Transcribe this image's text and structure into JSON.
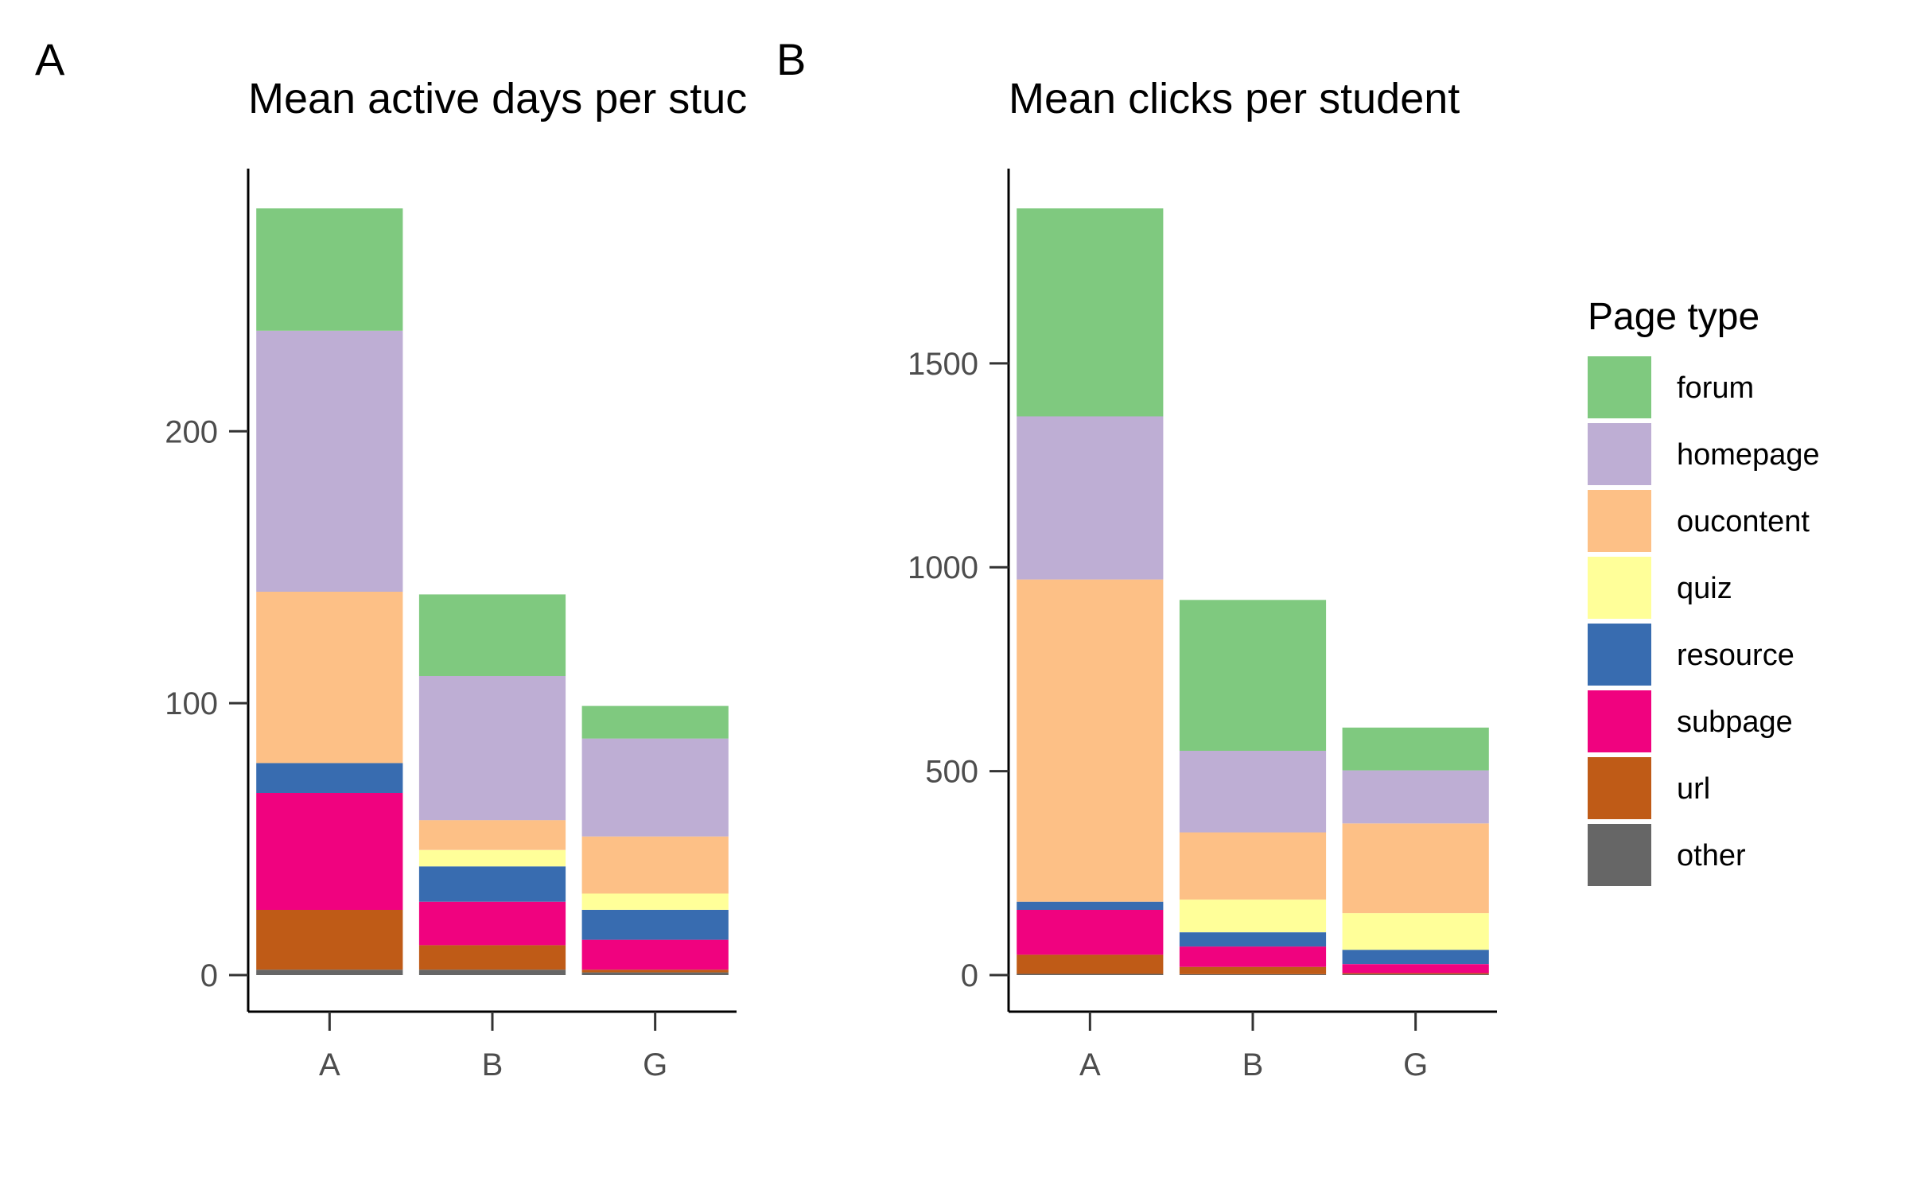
{
  "chart_data": [
    {
      "panel": "A",
      "type": "bar",
      "stacked": true,
      "title": "Mean active days per stuc",
      "xlabel": "",
      "ylabel": "",
      "categories": [
        "A",
        "B",
        "G"
      ],
      "ylim": [
        0,
        282
      ],
      "yticks": [
        0,
        100,
        200
      ],
      "series": [
        {
          "name": "other",
          "values": [
            2,
            2,
            1
          ]
        },
        {
          "name": "url",
          "values": [
            22,
            9,
            1
          ]
        },
        {
          "name": "subpage",
          "values": [
            43,
            16,
            11
          ]
        },
        {
          "name": "resource",
          "values": [
            11,
            13,
            11
          ]
        },
        {
          "name": "quiz",
          "values": [
            0,
            6,
            6
          ]
        },
        {
          "name": "oucontent",
          "values": [
            63,
            11,
            21
          ]
        },
        {
          "name": "homepage",
          "values": [
            96,
            53,
            36
          ]
        },
        {
          "name": "forum",
          "values": [
            45,
            30,
            12
          ]
        }
      ]
    },
    {
      "panel": "B",
      "type": "bar",
      "stacked": true,
      "title": "Mean clicks per student",
      "xlabel": "",
      "ylabel": "",
      "categories": [
        "A",
        "B",
        "G"
      ],
      "ylim": [
        0,
        1880
      ],
      "yticks": [
        0,
        500,
        1000,
        1500
      ],
      "series": [
        {
          "name": "other",
          "values": [
            3,
            2,
            2
          ]
        },
        {
          "name": "url",
          "values": [
            47,
            18,
            3
          ]
        },
        {
          "name": "subpage",
          "values": [
            110,
            50,
            22
          ]
        },
        {
          "name": "resource",
          "values": [
            20,
            35,
            35
          ]
        },
        {
          "name": "quiz",
          "values": [
            0,
            80,
            90
          ]
        },
        {
          "name": "oucontent",
          "values": [
            790,
            165,
            220
          ]
        },
        {
          "name": "homepage",
          "values": [
            400,
            200,
            130
          ]
        },
        {
          "name": "forum",
          "values": [
            510,
            370,
            105
          ]
        }
      ]
    }
  ],
  "legend": {
    "title": "Page type",
    "position": "right",
    "items": [
      {
        "label": "forum",
        "color": "#7fc97f"
      },
      {
        "label": "homepage",
        "color": "#beaed4"
      },
      {
        "label": "oucontent",
        "color": "#fdc086"
      },
      {
        "label": "quiz",
        "color": "#ffff99"
      },
      {
        "label": "resource",
        "color": "#386cb0"
      },
      {
        "label": "subpage",
        "color": "#f0027f"
      },
      {
        "label": "url",
        "color": "#bf5b17"
      },
      {
        "label": "other",
        "color": "#666666"
      }
    ]
  },
  "grid": false
}
